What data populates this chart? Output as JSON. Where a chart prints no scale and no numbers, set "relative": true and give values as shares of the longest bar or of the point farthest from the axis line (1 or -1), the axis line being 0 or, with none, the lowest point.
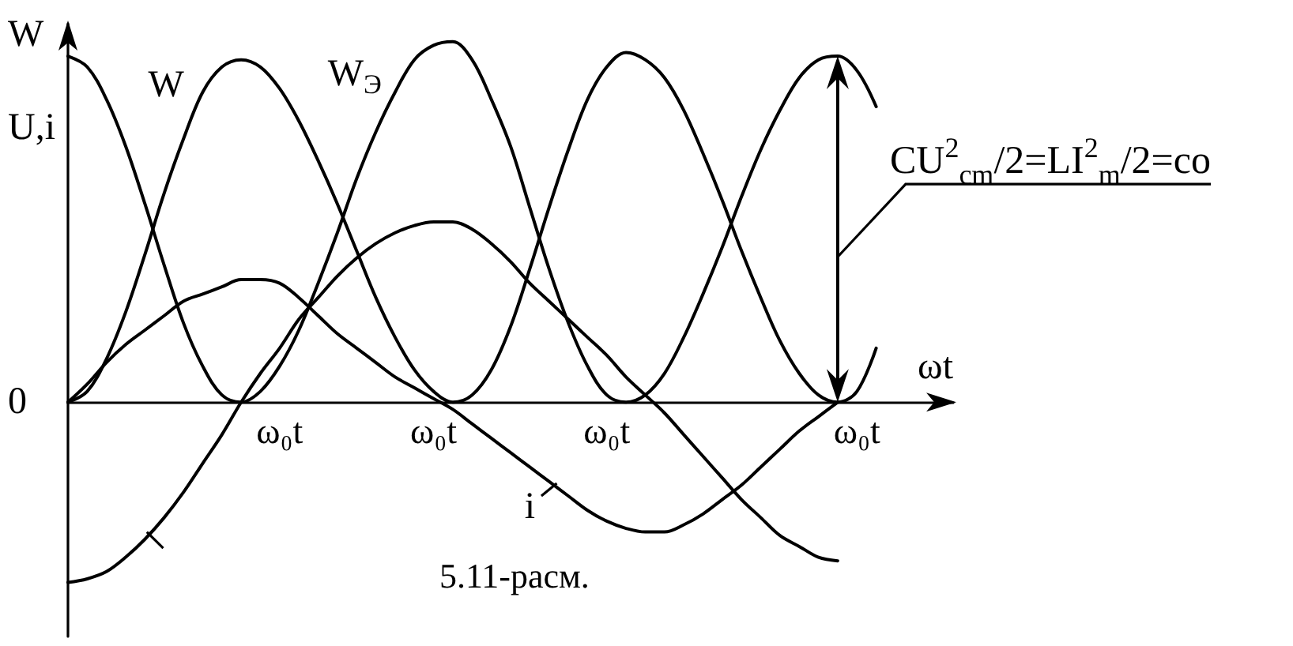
{
  "chart_data": {
    "type": "line",
    "relative": true,
    "xlabel": "ωt",
    "ylabel": "W\nU,i",
    "marker": "none",
    "categories": [
      null,
      null,
      null,
      null,
      null,
      null,
      null,
      null,
      null,
      null,
      null,
      "ω₀t",
      null,
      null,
      null,
      null,
      null,
      null,
      null,
      "ω₀t",
      null,
      null,
      null,
      null,
      null,
      null,
      null,
      null,
      "ω₀t",
      null,
      null,
      null,
      null,
      null,
      null,
      null,
      null,
      null,
      null,
      null,
      null,
      "ω₀t",
      null,
      null,
      null,
      null,
      null
    ],
    "series": [
      {
        "name": "W$_{Э}$",
        "color": "#000000",
        "values": [
          0.96,
          0.93,
          0.84,
          0.71,
          0.55,
          0.38,
          0.22,
          0.1,
          0.02,
          0,
          0.03,
          0.1,
          0.2,
          0.33,
          0.47,
          0.62,
          0.75,
          0.86,
          0.95,
          0.99,
          1.0,
          0.95,
          0.84,
          0.71,
          0.54,
          0.37,
          0.22,
          0.1,
          0.02,
          0,
          0.02,
          0.08,
          0.18,
          0.3,
          0.43,
          0.57,
          0.7,
          0.81,
          0.9,
          0.95,
          0.96,
          0.92,
          0.82,
          null,
          null,
          null,
          null
        ]
      },
      {
        "name": "W",
        "color": "#000000",
        "values": [
          0,
          0.03,
          0.12,
          0.25,
          0.41,
          0.58,
          0.73,
          0.86,
          0.93,
          0.95,
          0.93,
          0.87,
          0.78,
          0.67,
          0.55,
          0.42,
          0.29,
          0.18,
          0.09,
          0.03,
          0,
          0.02,
          0.09,
          0.21,
          0.37,
          0.54,
          0.7,
          0.84,
          0.93,
          0.97,
          0.95,
          0.9,
          0.81,
          0.69,
          0.56,
          0.42,
          0.29,
          0.17,
          0.08,
          0.02,
          0,
          0.03,
          0.15,
          null,
          null,
          null,
          null
        ]
      },
      {
        "color": "#000000",
        "values": [
          -0.5,
          -0.49,
          -0.47,
          -0.43,
          -0.38,
          -0.32,
          -0.25,
          -0.17,
          -0.09,
          0,
          0.08,
          0.15,
          0.23,
          0.29,
          0.35,
          0.4,
          0.44,
          0.47,
          0.49,
          0.5,
          0.5,
          0.48,
          0.44,
          0.39,
          0.33,
          0.28,
          0.23,
          0.18,
          0.13,
          0.07,
          0.02,
          -0.03,
          -0.09,
          -0.15,
          -0.21,
          -0.27,
          -0.32,
          -0.37,
          -0.4,
          -0.43,
          -0.44,
          null,
          null,
          null,
          null,
          null,
          null
        ]
      },
      {
        "name": "i",
        "color": "#000000",
        "values": [
          0,
          0.05,
          0.11,
          0.16,
          0.2,
          0.24,
          0.28,
          0.3,
          0.32,
          0.34,
          0.34,
          0.33,
          0.29,
          0.24,
          0.19,
          0.15,
          0.11,
          0.07,
          0.04,
          0.01,
          -0.02,
          -0.06,
          -0.1,
          -0.14,
          -0.18,
          -0.22,
          -0.26,
          -0.3,
          -0.33,
          -0.35,
          -0.36,
          -0.36,
          -0.34,
          -0.31,
          -0.27,
          -0.23,
          -0.18,
          -0.13,
          -0.08,
          -0.04,
          0,
          null,
          null,
          null,
          null,
          null,
          null
        ]
      }
    ],
    "annotations": [
      "0",
      "CU$^{2}$$_{cm}$/2=LI$^{2}$$_{m}$/2=co",
      "5.11-расм."
    ]
  }
}
